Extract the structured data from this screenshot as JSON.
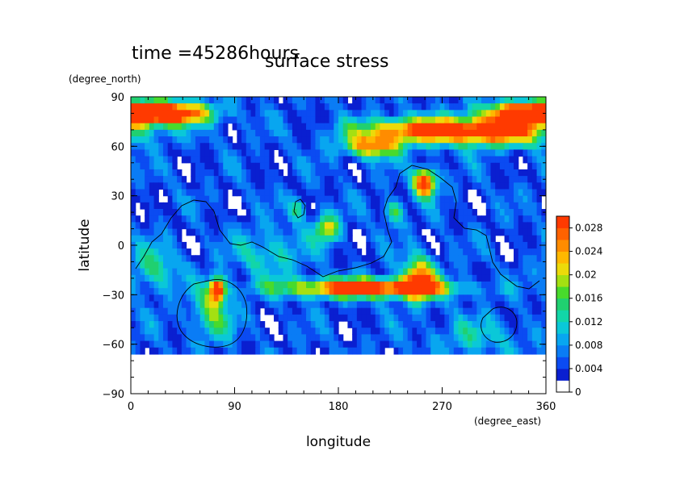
{
  "chart_data": {
    "type": "heatmap",
    "title": "surface stress",
    "time_label": "time =45286hours",
    "xlabel": "longitude",
    "ylabel": "latitude",
    "x_units": "(degree_east)",
    "y_units": "(degree_north)",
    "xlim": [
      0,
      360
    ],
    "ylim": [
      -90,
      90
    ],
    "x_ticks": [
      0,
      90,
      180,
      270,
      360
    ],
    "y_ticks": [
      90,
      60,
      30,
      0,
      -30,
      -60,
      -90
    ],
    "x_tick_labels": [
      "0",
      "90",
      "180",
      "270",
      "360"
    ],
    "y_tick_labels": [
      "90",
      "60",
      "30",
      "0",
      "−30",
      "−60",
      "−90"
    ],
    "colorbar": {
      "min": 0,
      "max": 0.03,
      "ticks": [
        0,
        0.004,
        0.008,
        0.012,
        0.016,
        0.02,
        0.024,
        0.028
      ],
      "tick_labels": [
        "0",
        "0.004",
        "0.008",
        "0.012",
        "0.016",
        "0.02",
        "0.024",
        "0.028"
      ],
      "levels": [
        {
          "from": 0,
          "to": 0.002,
          "color": "#ffffff"
        },
        {
          "from": 0.002,
          "to": 0.004,
          "color": "#0a1fd0"
        },
        {
          "from": 0.004,
          "to": 0.006,
          "color": "#0b4bf2"
        },
        {
          "from": 0.006,
          "to": 0.008,
          "color": "#0a7cf5"
        },
        {
          "from": 0.008,
          "to": 0.01,
          "color": "#08a6f0"
        },
        {
          "from": 0.01,
          "to": 0.012,
          "color": "#0ac8d8"
        },
        {
          "from": 0.012,
          "to": 0.014,
          "color": "#12d6a8"
        },
        {
          "from": 0.014,
          "to": 0.016,
          "color": "#20d070"
        },
        {
          "from": 0.016,
          "to": 0.018,
          "color": "#48da2c"
        },
        {
          "from": 0.018,
          "to": 0.02,
          "color": "#a4e012"
        },
        {
          "from": 0.02,
          "to": 0.022,
          "color": "#ecda0a"
        },
        {
          "from": 0.022,
          "to": 0.024,
          "color": "#ffb800"
        },
        {
          "from": 0.024,
          "to": 0.026,
          "color": "#ff8c00"
        },
        {
          "from": 0.026,
          "to": 0.028,
          "color": "#ff6200"
        },
        {
          "from": 0.028,
          "to": 0.03,
          "color": "#ff3a00"
        }
      ]
    },
    "features": [
      {
        "lon": 30,
        "lat": 80,
        "peak": 0.03,
        "sx": 28,
        "sy": 5
      },
      {
        "lon": 340,
        "lat": 80,
        "peak": 0.025,
        "sx": 25,
        "sy": 5
      },
      {
        "lon": 255,
        "lat": 70,
        "peak": 0.024,
        "sx": 40,
        "sy": 5
      },
      {
        "lon": 320,
        "lat": 68,
        "peak": 0.019,
        "sx": 35,
        "sy": 6
      },
      {
        "lon": 210,
        "lat": 60,
        "peak": 0.02,
        "sx": 18,
        "sy": 5
      },
      {
        "lon": 255,
        "lat": 38,
        "peak": 0.028,
        "sx": 7,
        "sy": 6
      },
      {
        "lon": 170,
        "lat": 10,
        "peak": 0.016,
        "sx": 8,
        "sy": 6
      },
      {
        "lon": 145,
        "lat": 22,
        "peak": 0.01,
        "sx": 5,
        "sy": 5
      },
      {
        "lon": 228,
        "lat": 20,
        "peak": 0.012,
        "sx": 6,
        "sy": 5
      },
      {
        "lon": 205,
        "lat": -26,
        "peak": 0.029,
        "sx": 50,
        "sy": 4
      },
      {
        "lon": 250,
        "lat": -20,
        "peak": 0.022,
        "sx": 10,
        "sy": 9
      },
      {
        "lon": 75,
        "lat": -27,
        "peak": 0.027,
        "sx": 5,
        "sy": 5
      },
      {
        "lon": 70,
        "lat": -42,
        "peak": 0.012,
        "sx": 12,
        "sy": 11
      },
      {
        "lon": 120,
        "lat": -5,
        "peak": 0.008,
        "sx": 20,
        "sy": 10
      },
      {
        "lon": 20,
        "lat": -15,
        "peak": 0.009,
        "sx": 15,
        "sy": 10
      },
      {
        "lon": 300,
        "lat": -55,
        "peak": 0.006,
        "sx": 30,
        "sy": 8
      }
    ],
    "background_level": 0.005
  }
}
